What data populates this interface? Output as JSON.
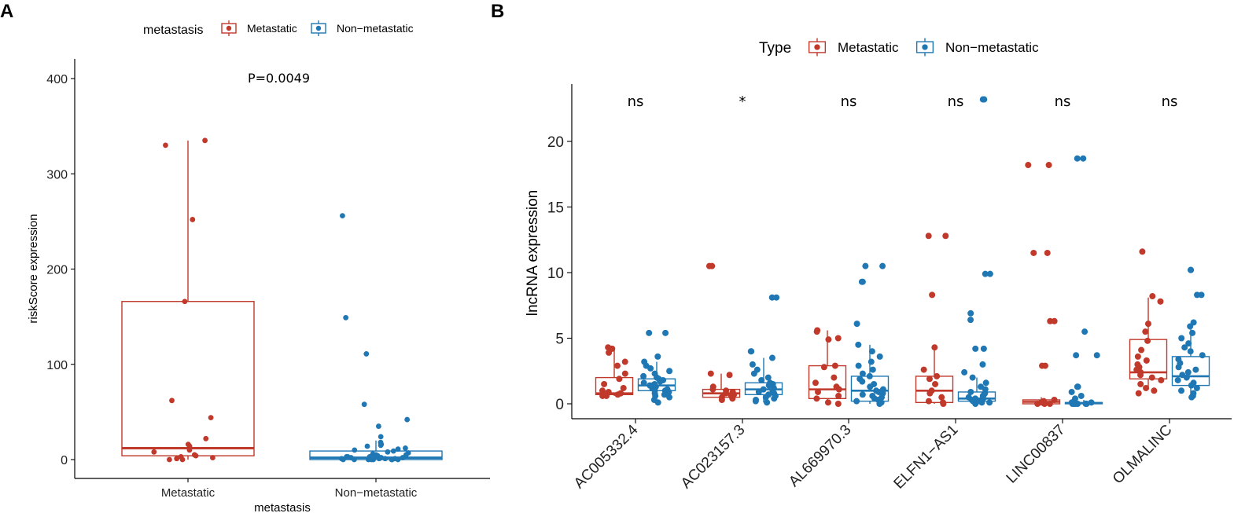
{
  "colors": {
    "metastatic": "#C0392B",
    "non_metastatic": "#1F77B4",
    "axis": "#000000"
  },
  "chart_data": [
    {
      "panel": "A",
      "type": "box",
      "legend": {
        "title": "metastasis",
        "items": [
          "Metastatic",
          "Non−metastatic"
        ],
        "placement": "top"
      },
      "xlabel": "metastasis",
      "ylabel": "riskScore expression",
      "categories": [
        "Metastatic",
        "Non−metastatic"
      ],
      "yticks": [
        0,
        100,
        200,
        300,
        400
      ],
      "ylim": [
        -20,
        420
      ],
      "annotation": "P=0.0049",
      "boxes": [
        {
          "group": "Metastatic",
          "min": 0,
          "q1": 4,
          "median": 12,
          "q3": 166,
          "max": 335
        },
        {
          "group": "Non−metastatic",
          "min": 0,
          "q1": 0,
          "median": 2,
          "q3": 9,
          "max": 20
        }
      ],
      "points": [
        {
          "group": "Metastatic",
          "y": [
            330,
            335,
            252,
            166,
            62,
            44,
            22,
            16,
            14,
            10,
            8,
            5,
            4,
            3,
            2,
            1,
            0,
            0
          ]
        },
        {
          "group": "Non−metastatic",
          "y": [
            256,
            149,
            111,
            58,
            42,
            35,
            24,
            18,
            16,
            15,
            14,
            12,
            11,
            10,
            9,
            8,
            7,
            6,
            5,
            5,
            4,
            4,
            3,
            3,
            3,
            2,
            2,
            2,
            1,
            1,
            1,
            1,
            0,
            0,
            0,
            0,
            0,
            0,
            0,
            0
          ]
        }
      ]
    },
    {
      "panel": "B",
      "type": "box",
      "legend": {
        "title": "Type",
        "items": [
          "Metastatic",
          "Non−metastatic"
        ],
        "placement": "top"
      },
      "xlabel": "",
      "ylabel": "lncRNA expression",
      "categories": [
        "AC005332.4",
        "AC023157.3",
        "AL669970.3",
        "ELFN1−AS1",
        "LINC00837",
        "OLMALINC"
      ],
      "significance": [
        "ns",
        "*",
        "ns",
        "ns",
        "ns",
        "ns"
      ],
      "yticks": [
        0,
        5,
        10,
        15,
        20
      ],
      "ylim": [
        -1,
        24.5
      ],
      "boxes": [
        {
          "gene": "AC005332.4",
          "group": "Metastatic",
          "min": 0.6,
          "q1": 0.7,
          "median": 0.8,
          "q3": 2.0,
          "max": 4.3
        },
        {
          "gene": "AC005332.4",
          "group": "Non−metastatic",
          "min": 0.1,
          "q1": 1.0,
          "median": 1.4,
          "q3": 1.9,
          "max": 3.2
        },
        {
          "gene": "AC023157.3",
          "group": "Metastatic",
          "min": 0.3,
          "q1": 0.5,
          "median": 0.8,
          "q3": 1.1,
          "max": 2.3
        },
        {
          "gene": "AC023157.3",
          "group": "Non−metastatic",
          "min": 0.1,
          "q1": 0.7,
          "median": 1.1,
          "q3": 1.6,
          "max": 3.5
        },
        {
          "gene": "AL669970.3",
          "group": "Metastatic",
          "min": 0.0,
          "q1": 0.4,
          "median": 1.1,
          "q3": 2.9,
          "max": 5.6
        },
        {
          "gene": "AL669970.3",
          "group": "Non−metastatic",
          "min": 0.0,
          "q1": 0.2,
          "median": 1.0,
          "q3": 2.1,
          "max": 4.5
        },
        {
          "gene": "ELFN1−AS1",
          "group": "Metastatic",
          "min": 0.0,
          "q1": 0.1,
          "median": 1.0,
          "q3": 2.1,
          "max": 4.3
        },
        {
          "gene": "ELFN1−AS1",
          "group": "Non−metastatic",
          "min": 0.0,
          "q1": 0.2,
          "median": 0.4,
          "q3": 0.9,
          "max": 2.0
        },
        {
          "gene": "LINC00837",
          "group": "Metastatic",
          "min": 0.0,
          "q1": 0.0,
          "median": 0.15,
          "q3": 0.3,
          "max": 0.5
        },
        {
          "gene": "LINC00837",
          "group": "Non−metastatic",
          "min": 0.0,
          "q1": 0.0,
          "median": 0.05,
          "q3": 0.1,
          "max": 0.3
        },
        {
          "gene": "OLMALINC",
          "group": "Metastatic",
          "min": 1.1,
          "q1": 1.9,
          "median": 2.4,
          "q3": 4.9,
          "max": 8.1
        },
        {
          "gene": "OLMALINC",
          "group": "Non−metastatic",
          "min": 0.6,
          "q1": 1.4,
          "median": 2.1,
          "q3": 3.6,
          "max": 6.1
        }
      ],
      "points": [
        {
          "gene": "AC005332.4",
          "group": "Metastatic",
          "y": [
            4.3,
            4.2,
            3.9,
            3.2,
            2.9,
            2.3,
            1.9,
            1.5,
            1.2,
            1.0,
            0.9,
            0.8,
            0.7,
            0.7,
            0.6,
            0.6
          ]
        },
        {
          "gene": "AC005332.4",
          "group": "Non−metastatic",
          "y": [
            5.4,
            5.4,
            3.6,
            3.2,
            2.9,
            2.7,
            2.5,
            2.3,
            2.1,
            2.0,
            1.9,
            1.8,
            1.7,
            1.6,
            1.5,
            1.4,
            1.4,
            1.3,
            1.2,
            1.1,
            1.0,
            1.0,
            0.9,
            0.8,
            0.7,
            0.6,
            0.5,
            0.3,
            0.1
          ]
        },
        {
          "gene": "AC023157.3",
          "group": "Metastatic",
          "y": [
            10.5,
            10.5,
            2.3,
            2.2,
            1.3,
            1.1,
            1.0,
            0.9,
            0.8,
            0.7,
            0.6,
            0.5,
            0.4,
            0.3
          ]
        },
        {
          "gene": "AC023157.3",
          "group": "Non−metastatic",
          "y": [
            8.1,
            8.1,
            4.0,
            4.0,
            3.5,
            3.0,
            2.6,
            2.3,
            2.0,
            1.8,
            1.6,
            1.5,
            1.4,
            1.2,
            1.1,
            1.0,
            0.9,
            0.8,
            0.7,
            0.6,
            0.5,
            0.4,
            0.3,
            0.2,
            0.1
          ]
        },
        {
          "gene": "AL669970.3",
          "group": "Metastatic",
          "y": [
            5.6,
            5.5,
            5.0,
            4.9,
            2.9,
            2.8,
            2.0,
            1.6,
            1.3,
            1.1,
            0.9,
            0.6,
            0.4,
            0.1,
            0.0
          ]
        },
        {
          "gene": "AL669970.3",
          "group": "Non−metastatic",
          "y": [
            10.5,
            10.5,
            9.3,
            9.3,
            6.1,
            4.5,
            4.0,
            3.6,
            3.2,
            2.9,
            2.6,
            2.3,
            2.1,
            1.9,
            1.7,
            1.5,
            1.3,
            1.1,
            1.0,
            0.9,
            0.8,
            0.7,
            0.6,
            0.5,
            0.4,
            0.3,
            0.2,
            0.1,
            0.0
          ]
        },
        {
          "gene": "ELFN1−AS1",
          "group": "Metastatic",
          "y": [
            12.8,
            12.8,
            8.3,
            4.3,
            2.6,
            2.1,
            1.9,
            1.5,
            1.0,
            0.8,
            0.5,
            0.2,
            0.1,
            0.0
          ]
        },
        {
          "gene": "ELFN1−AS1",
          "group": "Non−metastatic",
          "y": [
            23.2,
            23.2,
            9.9,
            9.9,
            6.9,
            6.4,
            4.2,
            4.2,
            3.0,
            2.4,
            2.0,
            1.6,
            1.3,
            1.1,
            0.9,
            0.8,
            0.7,
            0.6,
            0.5,
            0.4,
            0.4,
            0.3,
            0.3,
            0.2,
            0.2,
            0.1,
            0.1,
            0.0
          ]
        },
        {
          "gene": "LINC00837",
          "group": "Metastatic",
          "y": [
            18.2,
            18.2,
            11.5,
            11.5,
            6.3,
            6.3,
            2.9,
            2.9,
            0.3,
            0.2,
            0.1,
            0.0,
            0.0,
            0.0
          ]
        },
        {
          "gene": "LINC00837",
          "group": "Non−metastatic",
          "y": [
            18.7,
            18.7,
            5.5,
            3.7,
            3.7,
            1.3,
            1.3,
            0.9,
            0.6,
            0.4,
            0.2,
            0.1,
            0.1,
            0.0,
            0.0,
            0.0,
            0.0,
            0.0,
            0.0
          ]
        },
        {
          "gene": "OLMALINC",
          "group": "Metastatic",
          "y": [
            11.6,
            8.2,
            7.8,
            6.1,
            5.5,
            4.8,
            4.1,
            3.6,
            3.3,
            3.0,
            2.8,
            2.6,
            2.4,
            2.2,
            2.0,
            1.8,
            1.5,
            1.2,
            1.0,
            0.8
          ]
        },
        {
          "gene": "OLMALINC",
          "group": "Non−metastatic",
          "y": [
            10.2,
            10.2,
            8.3,
            8.3,
            6.2,
            5.9,
            5.4,
            5.0,
            4.6,
            4.3,
            4.0,
            3.7,
            3.4,
            3.1,
            2.8,
            2.6,
            2.4,
            2.2,
            2.0,
            1.8,
            1.6,
            1.4,
            1.2,
            1.0,
            0.8,
            0.6,
            0.5
          ]
        }
      ]
    }
  ]
}
